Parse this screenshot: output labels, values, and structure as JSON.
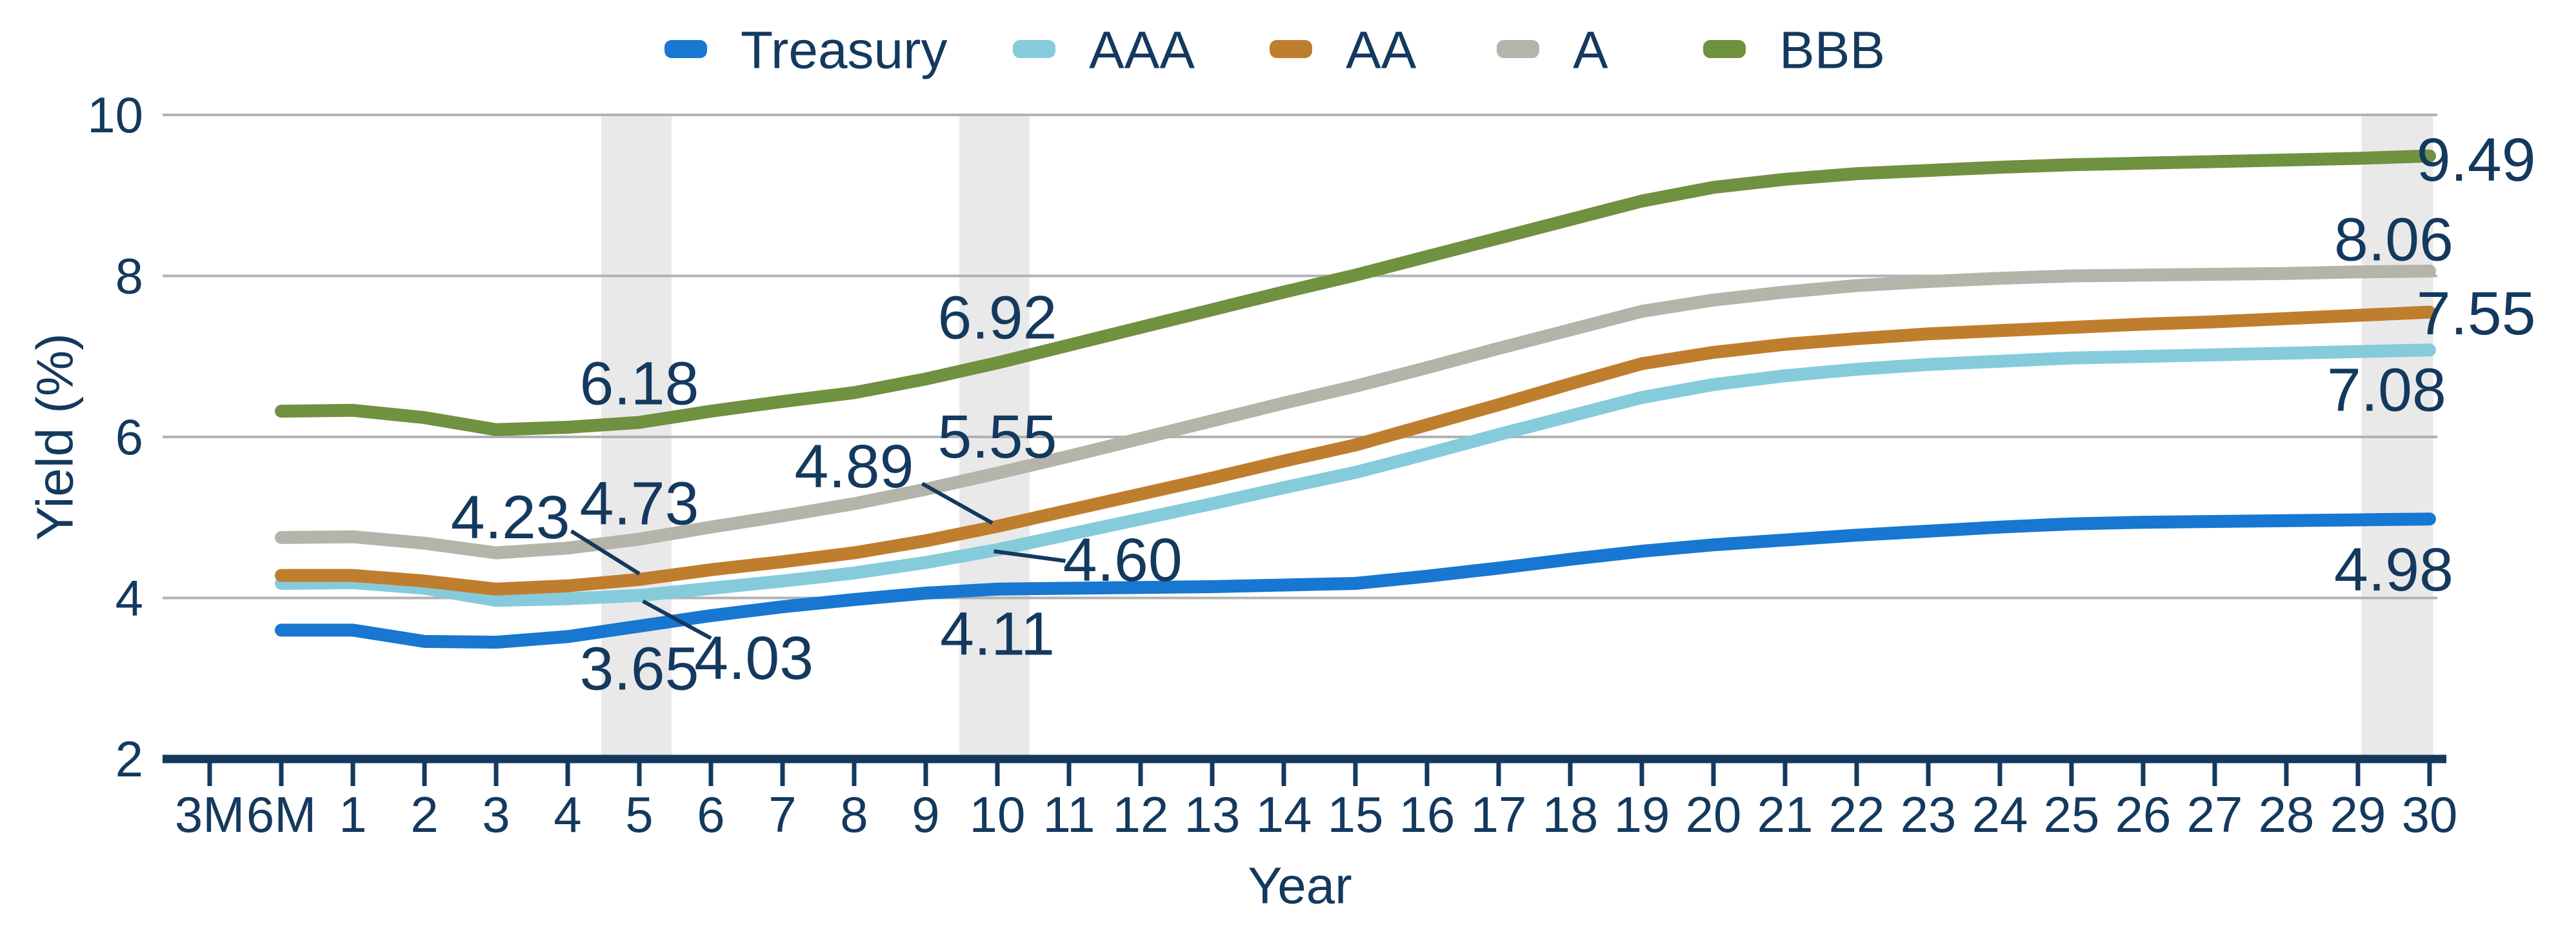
{
  "chart_data": {
    "type": "line",
    "title": "",
    "xlabel": "Year",
    "ylabel": "Yield (%)",
    "ylim": [
      2,
      10
    ],
    "y_ticks": [
      10,
      8,
      6,
      4,
      2
    ],
    "grid_values": [
      10,
      8,
      6,
      4
    ],
    "grid_on": true,
    "legend_position": "top-center",
    "categories": [
      "3M",
      "6M",
      "1",
      "2",
      "3",
      "4",
      "5",
      "6",
      "7",
      "8",
      "9",
      "10",
      "11",
      "12",
      "13",
      "14",
      "15",
      "16",
      "17",
      "18",
      "19",
      "20",
      "21",
      "22",
      "23",
      "24",
      "25",
      "26",
      "27",
      "28",
      "29",
      "30"
    ],
    "series": [
      {
        "name": "Treasury",
        "color": "#1777d1",
        "values": [
          null,
          3.6,
          3.6,
          3.46,
          3.45,
          3.52,
          3.65,
          3.78,
          3.89,
          3.98,
          4.06,
          4.11,
          4.12,
          4.13,
          4.14,
          4.16,
          4.18,
          4.27,
          4.37,
          4.48,
          4.58,
          4.66,
          4.72,
          4.78,
          4.83,
          4.88,
          4.92,
          4.94,
          4.95,
          4.96,
          4.97,
          4.98
        ]
      },
      {
        "name": "AAA",
        "color": "#85cbdc",
        "values": [
          null,
          4.18,
          4.19,
          4.12,
          3.97,
          3.99,
          4.03,
          4.12,
          4.21,
          4.31,
          4.44,
          4.6,
          4.79,
          4.98,
          5.17,
          5.37,
          5.56,
          5.79,
          6.03,
          6.26,
          6.49,
          6.65,
          6.76,
          6.84,
          6.9,
          6.94,
          6.98,
          7.0,
          7.02,
          7.04,
          7.06,
          7.08
        ]
      },
      {
        "name": "AA",
        "color": "#bf7e2e",
        "values": [
          null,
          4.28,
          4.28,
          4.21,
          4.11,
          4.15,
          4.23,
          4.35,
          4.45,
          4.56,
          4.71,
          4.89,
          5.09,
          5.29,
          5.49,
          5.7,
          5.9,
          6.15,
          6.4,
          6.66,
          6.91,
          7.05,
          7.15,
          7.22,
          7.28,
          7.32,
          7.36,
          7.4,
          7.43,
          7.47,
          7.51,
          7.55
        ]
      },
      {
        "name": "A",
        "color": "#b4b4ab",
        "values": [
          null,
          4.75,
          4.76,
          4.68,
          4.56,
          4.62,
          4.73,
          4.88,
          5.02,
          5.17,
          5.35,
          5.55,
          5.76,
          5.98,
          6.2,
          6.42,
          6.63,
          6.86,
          7.1,
          7.33,
          7.56,
          7.7,
          7.8,
          7.88,
          7.93,
          7.97,
          8.0,
          8.01,
          8.02,
          8.03,
          8.05,
          8.06
        ]
      },
      {
        "name": "BBB",
        "color": "#6f9140",
        "values": [
          null,
          6.32,
          6.33,
          6.24,
          6.09,
          6.12,
          6.18,
          6.32,
          6.44,
          6.55,
          6.72,
          6.92,
          7.14,
          7.36,
          7.58,
          7.8,
          8.01,
          8.24,
          8.47,
          8.7,
          8.93,
          9.1,
          9.2,
          9.27,
          9.31,
          9.35,
          9.38,
          9.4,
          9.42,
          9.44,
          9.46,
          9.49
        ]
      }
    ],
    "highlight_bands": [
      {
        "at_category": "5",
        "from": 5.47,
        "to": 6.45
      },
      {
        "at_category": "10",
        "from": 10.47,
        "to": 11.45
      },
      {
        "at_category": "30",
        "from": 30.05,
        "to": 31.05
      }
    ],
    "value_labels": [
      {
        "text": "6.18",
        "series": "BBB",
        "x": 6.0,
        "y": 6.66
      },
      {
        "text": "4.73",
        "series": "A",
        "x": 6.0,
        "y": 5.17
      },
      {
        "text": "4.23",
        "series": "AA",
        "x": 4.2,
        "y": 5.0,
        "leader": [
          5.05,
          4.83,
          6.0,
          4.3
        ]
      },
      {
        "text": "4.03",
        "series": "AAA",
        "x": 7.6,
        "y": 3.25,
        "leader": [
          6.05,
          3.96,
          7.0,
          3.5
        ]
      },
      {
        "text": "3.65",
        "series": "Treasury",
        "x": 6.0,
        "y": 3.12
      },
      {
        "text": "6.92",
        "series": "BBB",
        "x": 11.0,
        "y": 7.48
      },
      {
        "text": "5.55",
        "series": "A",
        "x": 11.0,
        "y": 6.0
      },
      {
        "text": "4.89",
        "series": "AA",
        "x": 9.0,
        "y": 5.63,
        "leader": [
          9.95,
          5.42,
          10.93,
          4.93
        ]
      },
      {
        "text": "4.60",
        "series": "AAA",
        "x": 12.75,
        "y": 4.47,
        "leader": [
          10.95,
          4.58,
          11.95,
          4.46
        ]
      },
      {
        "text": "4.11",
        "series": "Treasury",
        "x": 11.0,
        "y": 3.55
      },
      {
        "text": "9.49",
        "series": "BBB",
        "x": 31.65,
        "y": 9.44
      },
      {
        "text": "8.06",
        "series": "A",
        "x": 30.5,
        "y": 8.45
      },
      {
        "text": "7.55",
        "series": "AA",
        "x": 31.65,
        "y": 7.53
      },
      {
        "text": "7.08",
        "series": "AAA",
        "x": 30.4,
        "y": 6.58
      },
      {
        "text": "4.98",
        "series": "Treasury",
        "x": 30.5,
        "y": 4.35
      }
    ],
    "colors": {
      "text": "#14395e",
      "axis": "#14395e",
      "gridline": "#b2b2b2",
      "band": "#e9e9e9",
      "background": "#ffffff"
    }
  }
}
